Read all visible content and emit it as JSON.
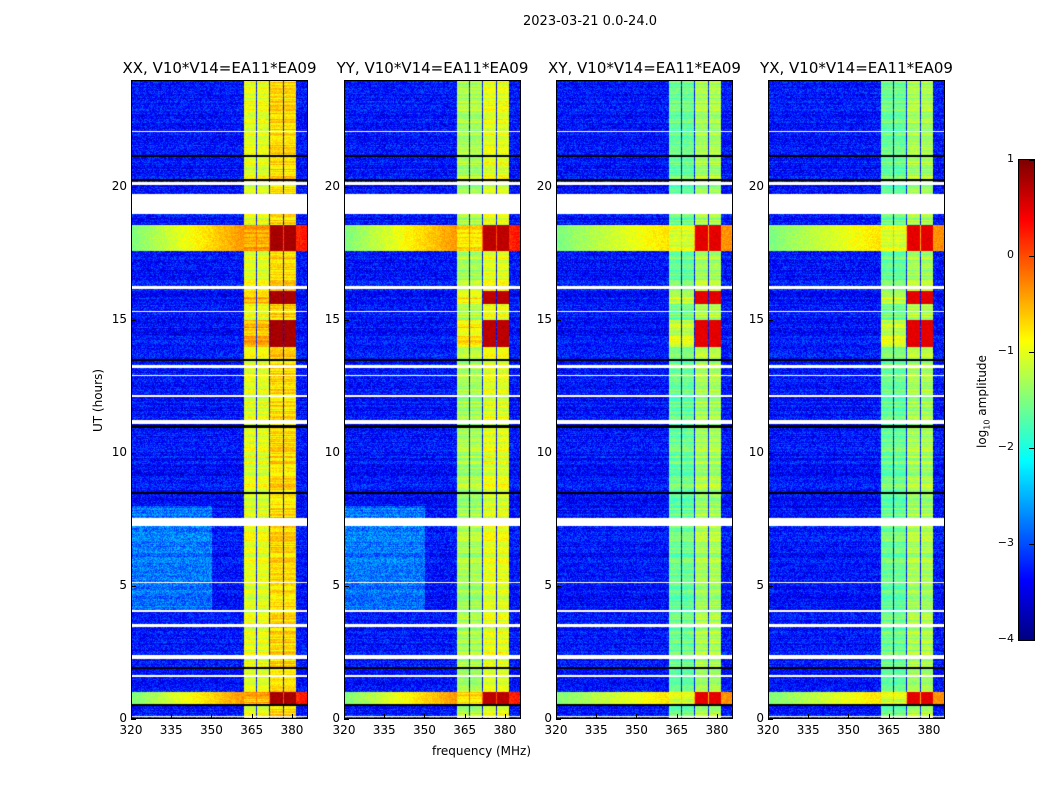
{
  "chart_data": {
    "type": "heatmap",
    "title": "2023-03-21 0.0-24.0",
    "xlabel": "frequency (MHz)",
    "ylabel": "UT (hours)",
    "xlim": [
      320,
      386
    ],
    "ylim": [
      0,
      24
    ],
    "xticks": [
      "320",
      "335",
      "350",
      "365",
      "380"
    ],
    "xtick_values": [
      320,
      335,
      350,
      365,
      380
    ],
    "yticks": [
      "0",
      "5",
      "10",
      "15",
      "20"
    ],
    "ytick_values": [
      0,
      5,
      10,
      15,
      20
    ],
    "panels": [
      {
        "title": "XX, V10*V14=EA11*EA09",
        "band_level": -0.4,
        "hot_level": 0.8
      },
      {
        "title": "YY, V10*V14=EA11*EA09",
        "band_level": -0.7,
        "hot_level": 0.7
      },
      {
        "title": "XY, V10*V14=EA11*EA09",
        "band_level": -1.0,
        "hot_level": 0.5
      },
      {
        "title": "YX, V10*V14=EA11*EA09",
        "band_level": -1.0,
        "hot_level": 0.5
      }
    ],
    "subbands_mhz": [
      [
        362,
        366.6
      ],
      [
        367,
        371.5
      ],
      [
        372,
        376.6
      ],
      [
        377,
        381.5
      ]
    ],
    "flagged_hours": [
      [
        19.0,
        19.75
      ],
      [
        20.1,
        20.2
      ],
      [
        11.1,
        11.25
      ],
      [
        7.27,
        7.55
      ],
      [
        4.0,
        4.1
      ],
      [
        3.45,
        3.55
      ],
      [
        2.25,
        2.4
      ],
      [
        1.55,
        1.65
      ],
      [
        13.2,
        13.3
      ],
      [
        12.9,
        12.95
      ],
      [
        12.1,
        12.2
      ],
      [
        15.3,
        15.35
      ],
      [
        16.2,
        16.3
      ],
      [
        22.1,
        22.15
      ],
      [
        5.1,
        5.15
      ],
      [
        0.05,
        0.1
      ]
    ],
    "colorbar": {
      "label": "log10 amplitude",
      "label_main": "log",
      "label_sub": "10",
      "label_rest": " amplitude",
      "range": [
        -4,
        1
      ],
      "ticks": [
        "1",
        "0",
        "−1",
        "−2",
        "−3",
        "−4"
      ],
      "tick_values": [
        1,
        0,
        -1,
        -2,
        -3,
        -4
      ],
      "colormap": "jet"
    }
  }
}
